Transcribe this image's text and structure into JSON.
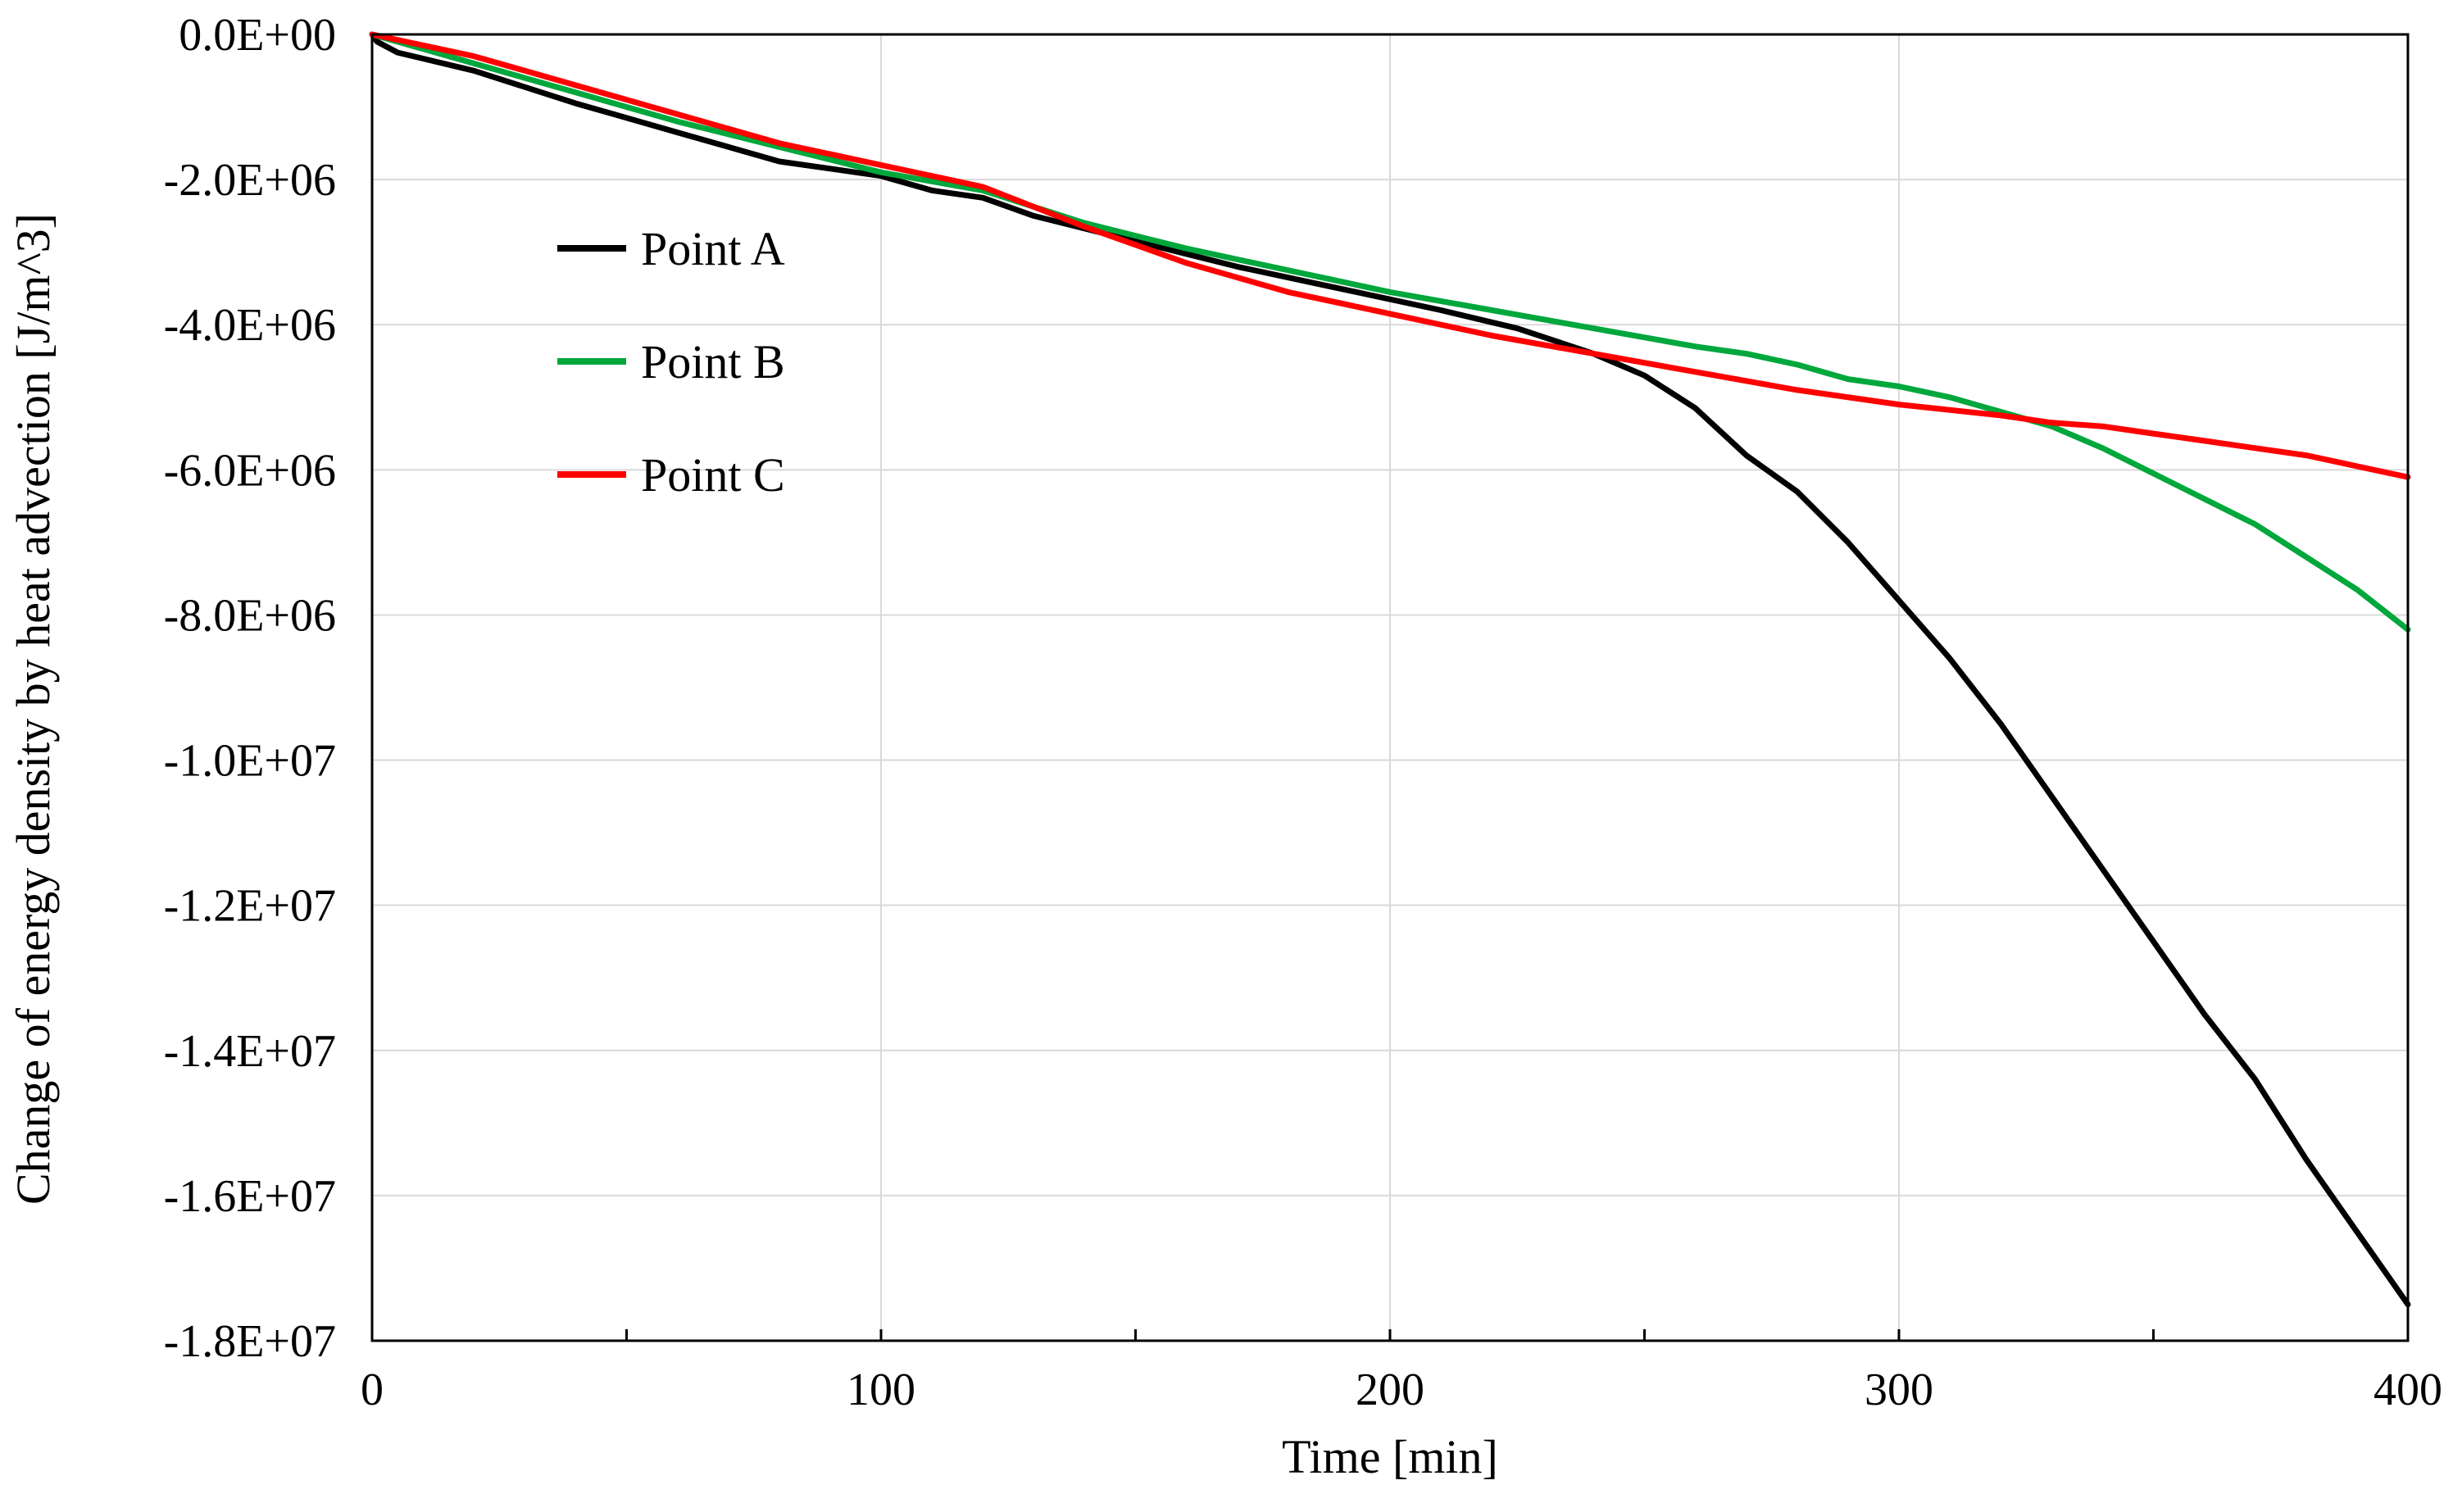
{
  "chart_data": {
    "type": "line",
    "title": "",
    "xlabel": "Time [min]",
    "ylabel": "Change of energy density by heat advection [J/m^3]",
    "xlim": [
      0,
      400
    ],
    "ylim": [
      -18000000,
      0
    ],
    "x_ticks": [
      0,
      100,
      200,
      300,
      400
    ],
    "x_tick_labels": [
      "0",
      "100",
      "200",
      "300",
      "400"
    ],
    "x_minor_ticks": [
      50,
      150,
      250,
      350
    ],
    "y_ticks": [
      0,
      -2000000,
      -4000000,
      -6000000,
      -8000000,
      -10000000,
      -12000000,
      -14000000,
      -16000000,
      -18000000
    ],
    "y_tick_labels": [
      "0.0E+00",
      "-2.0E+06",
      "-4.0E+06",
      "-6.0E+06",
      "-8.0E+06",
      "-1.0E+07",
      "-1.2E+07",
      "-1.4E+07",
      "-1.6E+07",
      "-1.8E+07"
    ],
    "grid": true,
    "legend_position": "upper-left",
    "series": [
      {
        "name": "Point A",
        "color": "#000000",
        "x": [
          0,
          1,
          5,
          20,
          40,
          60,
          80,
          90,
          100,
          110,
          120,
          130,
          150,
          170,
          190,
          210,
          225,
          240,
          250,
          260,
          270,
          280,
          290,
          300,
          310,
          320,
          330,
          340,
          350,
          360,
          370,
          380,
          390,
          400
        ],
        "y": [
          0,
          -100000,
          -250000,
          -500000,
          -950000,
          -1350000,
          -1750000,
          -1850000,
          -1950000,
          -2150000,
          -2250000,
          -2500000,
          -2850000,
          -3200000,
          -3500000,
          -3800000,
          -4050000,
          -4400000,
          -4700000,
          -5150000,
          -5800000,
          -6300000,
          -7000000,
          -7800000,
          -8600000,
          -9500000,
          -10500000,
          -11500000,
          -12500000,
          -13500000,
          -14400000,
          -15500000,
          -16500000,
          -17500000
        ]
      },
      {
        "name": "Point B",
        "color": "#00a73c",
        "x": [
          0,
          20,
          40,
          60,
          80,
          100,
          120,
          140,
          160,
          180,
          200,
          220,
          240,
          260,
          270,
          280,
          290,
          300,
          310,
          320,
          330,
          340,
          350,
          360,
          370,
          380,
          390,
          400
        ],
        "y": [
          0,
          -400000,
          -800000,
          -1200000,
          -1550000,
          -1900000,
          -2150000,
          -2600000,
          -2950000,
          -3250000,
          -3550000,
          -3800000,
          -4050000,
          -4300000,
          -4400000,
          -4550000,
          -4750000,
          -4850000,
          -5000000,
          -5200000,
          -5400000,
          -5700000,
          -6050000,
          -6400000,
          -6750000,
          -7200000,
          -7650000,
          -8200000
        ]
      },
      {
        "name": "Point C",
        "color": "#ff0000",
        "x": [
          0,
          20,
          40,
          60,
          80,
          100,
          120,
          140,
          160,
          180,
          200,
          220,
          240,
          260,
          280,
          300,
          320,
          330,
          340,
          350,
          360,
          370,
          380,
          390,
          400
        ],
        "y": [
          0,
          -300000,
          -700000,
          -1100000,
          -1500000,
          -1800000,
          -2100000,
          -2650000,
          -3150000,
          -3550000,
          -3850000,
          -4150000,
          -4400000,
          -4650000,
          -4900000,
          -5100000,
          -5250000,
          -5350000,
          -5400000,
          -5500000,
          -5600000,
          -5700000,
          -5800000,
          -5950000,
          -6100000
        ]
      }
    ]
  }
}
